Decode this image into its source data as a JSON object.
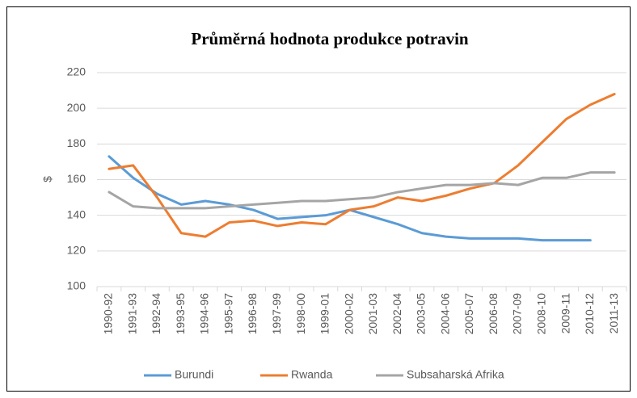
{
  "chart_data": {
    "type": "line",
    "title": "Průměrná hodnota produkce potravin",
    "y_label": "$",
    "categories": [
      "1990-92",
      "1991-93",
      "1992-94",
      "1993-95",
      "1994-96",
      "1995-97",
      "1996-98",
      "1997-99",
      "1998-00",
      "1999-01",
      "2000-02",
      "2001-03",
      "2002-04",
      "2003-05",
      "2004-06",
      "2005-07",
      "2006-08",
      "2007-09",
      "2008-10",
      "2009-11",
      "2010-12",
      "2011-13"
    ],
    "series": [
      {
        "name": "Burundi",
        "color": "#5b9bd5",
        "values": [
          173,
          161,
          152,
          146,
          148,
          146,
          143,
          138,
          139,
          140,
          143,
          139,
          135,
          130,
          128,
          127,
          127,
          127,
          126,
          126,
          126,
          null
        ]
      },
      {
        "name": "Rwanda",
        "color": "#ed7d31",
        "values": [
          166,
          168,
          150,
          130,
          128,
          136,
          137,
          134,
          136,
          135,
          143,
          145,
          150,
          148,
          151,
          155,
          158,
          168,
          181,
          194,
          202,
          208
        ]
      },
      {
        "name": "Subsaharská Afrika",
        "color": "#a5a5a5",
        "values": [
          153,
          145,
          144,
          144,
          144,
          145,
          146,
          147,
          148,
          148,
          149,
          150,
          153,
          155,
          157,
          157,
          158,
          157,
          161,
          161,
          164,
          164
        ]
      }
    ],
    "ylim": [
      100,
      220
    ],
    "yticks": [
      100,
      120,
      140,
      160,
      180,
      200,
      220
    ],
    "grid": true,
    "legend": "bottom"
  }
}
